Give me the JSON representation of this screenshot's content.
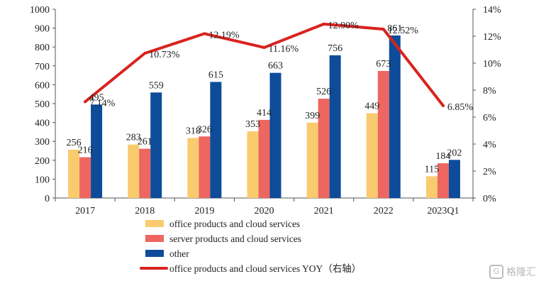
{
  "chart_data": {
    "type": "bar",
    "categories": [
      "2017",
      "2018",
      "2019",
      "2020",
      "2021",
      "2022",
      "2023Q1"
    ],
    "series": [
      {
        "name": "office products and cloud services",
        "type": "bar",
        "axis": "left",
        "color": "#F9CB6E",
        "values": [
          256,
          283,
          318,
          353,
          399,
          449,
          115
        ]
      },
      {
        "name": "server products and cloud services",
        "type": "bar",
        "axis": "left",
        "color": "#EE6660",
        "values": [
          216,
          261,
          326,
          414,
          526,
          673,
          184
        ]
      },
      {
        "name": "other",
        "type": "bar",
        "axis": "left",
        "color": "#0E4C9A",
        "values": [
          495,
          559,
          615,
          663,
          756,
          861,
          202
        ]
      },
      {
        "name": "office products and cloud services YOY（右轴）",
        "type": "line",
        "axis": "right",
        "color": "#D9231F",
        "values": [
          7.14,
          10.73,
          12.19,
          11.16,
          12.9,
          12.52,
          6.85
        ],
        "labels": [
          "7.14%",
          "10.73%",
          "12.19%",
          "11.16%",
          "12.90%",
          "12.52%",
          "6.85%"
        ]
      }
    ],
    "y_left": {
      "min": 0,
      "max": 1000,
      "step": 100,
      "ticks": [
        "0",
        "100",
        "200",
        "300",
        "400",
        "500",
        "600",
        "700",
        "800",
        "900",
        "1000"
      ]
    },
    "y_right": {
      "min": 0,
      "max": 14,
      "step": 2,
      "ticks": [
        "0%",
        "2%",
        "4%",
        "6%",
        "8%",
        "10%",
        "12%",
        "14%"
      ]
    },
    "title": "",
    "xlabel": "",
    "ylabel": "",
    "grid": false,
    "legend_placement": "bottom"
  },
  "watermark": {
    "text": "格隆汇",
    "logo": "G"
  }
}
